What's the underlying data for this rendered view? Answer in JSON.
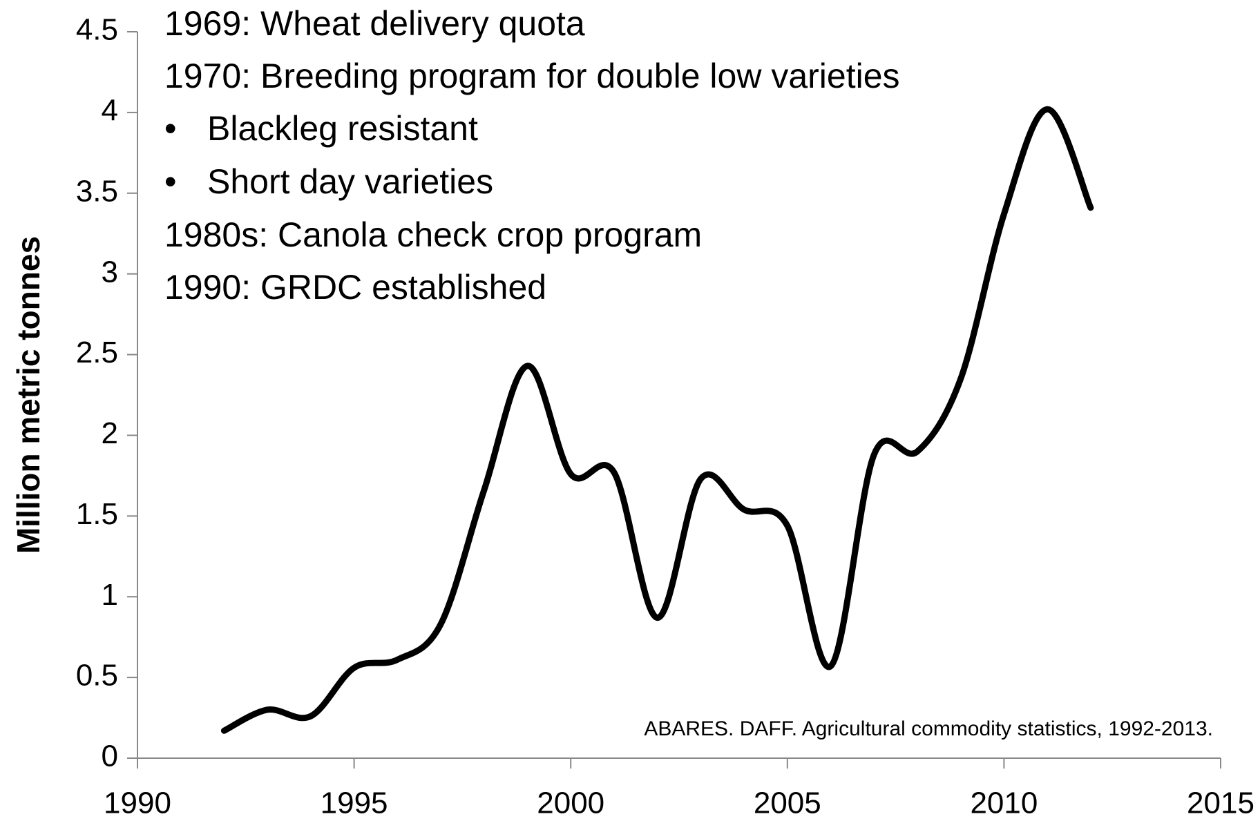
{
  "chart_data": {
    "type": "line",
    "y_label": "Million metric tonnes",
    "annotations": [
      "1969: Wheat delivery quota",
      "1970: Breeding program for double low varieties",
      "Blackleg resistant",
      "Short day varieties",
      "1980s: Canola check crop program",
      "1990: GRDC established"
    ],
    "source": "ABARES. DAFF. Agricultural commodity statistics, 1992-2013.",
    "x": [
      1992,
      1993,
      1994,
      1995,
      1996,
      1997,
      1998,
      1999,
      2000,
      2001,
      2002,
      2003,
      2004,
      2005,
      2006,
      2007,
      2008,
      2009,
      2010,
      2011,
      2012
    ],
    "series": [
      {
        "color": "#000000",
        "values": [
          0.17,
          0.3,
          0.26,
          0.56,
          0.61,
          0.83,
          1.66,
          2.43,
          1.76,
          1.77,
          0.87,
          1.73,
          1.54,
          1.44,
          0.57,
          1.88,
          1.9,
          2.35,
          3.37,
          4.02,
          3.41
        ]
      }
    ],
    "xlim": [
      1990,
      2015
    ],
    "xticks": [
      1990,
      1995,
      2000,
      2005,
      2010,
      2015
    ],
    "ylim": [
      0,
      4.5
    ],
    "yticks": [
      0,
      0.5,
      1,
      1.5,
      2,
      2.5,
      3,
      3.5,
      4,
      4.5
    ],
    "smooth": true
  }
}
